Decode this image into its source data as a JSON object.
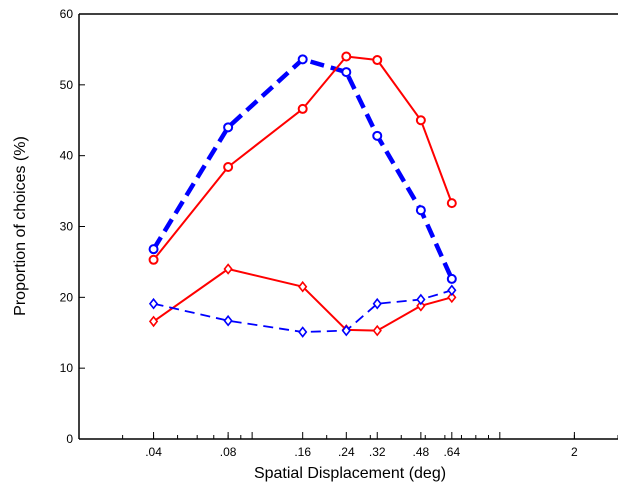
{
  "chart_data": {
    "type": "line",
    "title": "",
    "xlabel": "Spatial Displacement (deg)",
    "ylabel": "Proportion of choices (%)",
    "x_scale": "log",
    "xlim": [
      0.02,
      3.0
    ],
    "ylim": [
      0,
      60
    ],
    "grid": false,
    "legend": "none",
    "x_tick_labels": [
      {
        "value": 0.04,
        "label": ".04"
      },
      {
        "value": 0.08,
        "label": ".08"
      },
      {
        "value": 0.16,
        "label": ".16"
      },
      {
        "value": 0.24,
        "label": ".24"
      },
      {
        "value": 0.32,
        "label": ".32"
      },
      {
        "value": 0.48,
        "label": ".48"
      },
      {
        "value": 0.64,
        "label": ".64"
      },
      {
        "value": 2,
        "label": "2"
      }
    ],
    "y_ticks": [
      0,
      10,
      20,
      30,
      40,
      50,
      60
    ],
    "x": [
      0.04,
      0.08,
      0.16,
      0.24,
      0.32,
      0.48,
      0.64
    ],
    "series": [
      {
        "values": [
          26.8,
          44.0,
          53.6,
          51.8,
          42.8,
          32.3,
          22.6
        ],
        "color": "#0000ff",
        "line_style": "dashed-thick",
        "marker": "circle"
      },
      {
        "values": [
          25.3,
          38.4,
          46.6,
          54.0,
          53.5,
          45.0,
          33.3
        ],
        "color": "#ff0000",
        "line_style": "solid",
        "marker": "circle"
      },
      {
        "values": [
          16.6,
          24.0,
          21.5,
          15.4,
          15.3,
          18.8,
          20.0
        ],
        "color": "#ff0000",
        "line_style": "solid",
        "marker": "diamond"
      },
      {
        "values": [
          19.1,
          16.7,
          15.1,
          15.3,
          19.1,
          19.7,
          21.0
        ],
        "color": "#0000ff",
        "line_style": "dashed",
        "marker": "diamond"
      }
    ]
  }
}
